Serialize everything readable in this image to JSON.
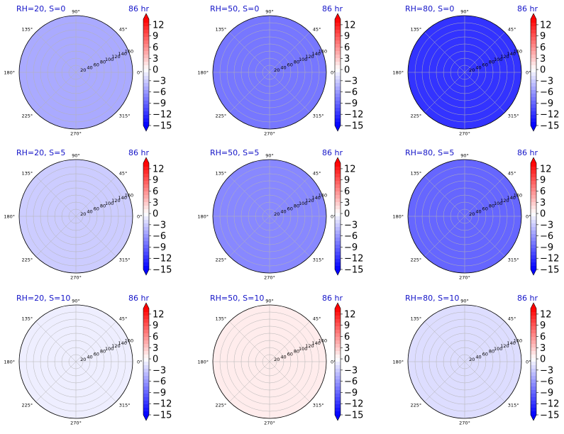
{
  "chart_data": {
    "type": "heatmap",
    "projection": "polar",
    "layout": "3x3 grid",
    "angle_tick_labels": [
      "0°",
      "45°",
      "90°",
      "135°",
      "180°",
      "225°",
      "270°",
      "315°"
    ],
    "radial_tick_labels": [
      "20",
      "40",
      "60",
      "80",
      "100",
      "120",
      "140",
      "160"
    ],
    "rlim": [
      0,
      160
    ],
    "grid": true,
    "colormap": "bwr",
    "colormap_colors": [
      "#0000ff",
      "#ffffff",
      "#ff0000"
    ],
    "colorbar_ticks": [
      "12",
      "9",
      "6",
      "3",
      "0",
      "−3",
      "−6",
      "−9",
      "−12",
      "−15"
    ],
    "colorbar_range": [
      -15,
      13.5
    ],
    "colorbar_extend": "both",
    "panels": [
      {
        "title": "RH=20, S=0",
        "time_label": "86 hr",
        "mean_value": -5
      },
      {
        "title": "RH=50, S=0",
        "time_label": "86 hr",
        "mean_value": -8
      },
      {
        "title": "RH=80, S=0",
        "time_label": "86 hr",
        "mean_value": -12
      },
      {
        "title": "RH=20, S=5",
        "time_label": "86 hr",
        "mean_value": -3
      },
      {
        "title": "RH=50, S=5",
        "time_label": "86 hr",
        "mean_value": -7
      },
      {
        "title": "RH=80, S=5",
        "time_label": "86 hr",
        "mean_value": -9
      },
      {
        "title": "RH=20, S=10",
        "time_label": "86 hr",
        "mean_value": -1
      },
      {
        "title": "RH=50, S=10",
        "time_label": "86 hr",
        "mean_value": 1
      },
      {
        "title": "RH=80, S=10",
        "time_label": "86 hr",
        "mean_value": -2
      }
    ]
  }
}
